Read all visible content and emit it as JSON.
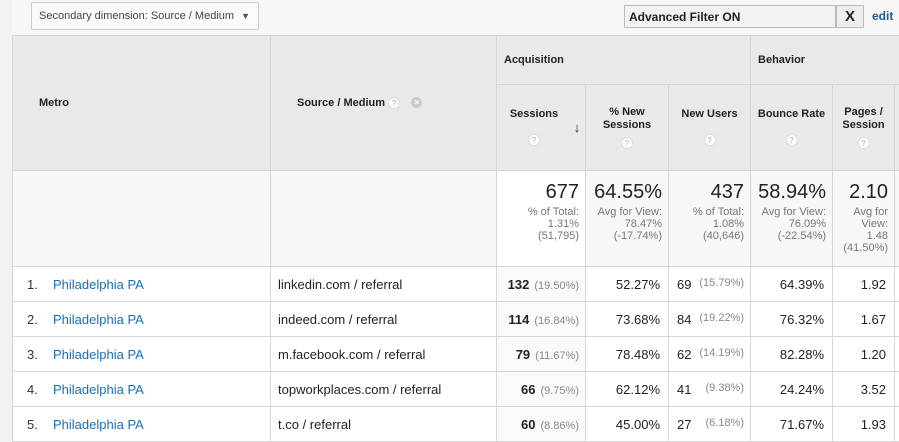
{
  "toolbar": {
    "secondary_dimension": "Secondary dimension: Source / Medium",
    "filter_value": "Advanced Filter ON",
    "clear_label": "X",
    "edit_label": "edit"
  },
  "headers": {
    "metro": "Metro",
    "source_medium": "Source / Medium",
    "groups": [
      "Acquisition",
      "Behavior"
    ],
    "metrics": [
      "Sessions",
      "% New Sessions",
      "New Users",
      "Bounce Rate",
      "Pages / Session"
    ],
    "help": "?"
  },
  "totals": {
    "sessions": {
      "value": "677",
      "l1": "% of Total:",
      "l2": "1.31%",
      "l3": "(51,795)"
    },
    "new_sessions": {
      "value": "64.55%",
      "l1": "Avg for View:",
      "l2": "78.47%",
      "l3": "(-17.74%)"
    },
    "new_users": {
      "value": "437",
      "l1": "% of Total:",
      "l2": "1.08%",
      "l3": "(40,646)"
    },
    "bounce": {
      "value": "58.94%",
      "l1": "Avg for View:",
      "l2": "76.09%",
      "l3": "(-22.54%)"
    },
    "pages": {
      "value": "2.10",
      "l1": "Avg for",
      "l2": "View:",
      "l3": "1.48",
      "l4": "(41.50%)"
    }
  },
  "rows": [
    {
      "idx": "1.",
      "metro": "Philadelphia PA",
      "source": "linkedin.com / referral",
      "sessions": "132",
      "sessions_pct": "(19.50%)",
      "new_sessions": "52.27%",
      "new_users": "69",
      "new_users_pct": "(15.79%)",
      "bounce": "64.39%",
      "pages": "1.92"
    },
    {
      "idx": "2.",
      "metro": "Philadelphia PA",
      "source": "indeed.com / referral",
      "sessions": "114",
      "sessions_pct": "(16.84%)",
      "new_sessions": "73.68%",
      "new_users": "84",
      "new_users_pct": "(19.22%)",
      "bounce": "76.32%",
      "pages": "1.67"
    },
    {
      "idx": "3.",
      "metro": "Philadelphia PA",
      "source": "m.facebook.com / referral",
      "sessions": "79",
      "sessions_pct": "(11.67%)",
      "new_sessions": "78.48%",
      "new_users": "62",
      "new_users_pct": "(14.19%)",
      "bounce": "82.28%",
      "pages": "1.20"
    },
    {
      "idx": "4.",
      "metro": "Philadelphia PA",
      "source": "topworkplaces.com / referral",
      "sessions": "66",
      "sessions_pct": "(9.75%)",
      "new_sessions": "62.12%",
      "new_users": "41",
      "new_users_pct": "(9.38%)",
      "bounce": "24.24%",
      "pages": "3.52"
    },
    {
      "idx": "5.",
      "metro": "Philadelphia PA",
      "source": "t.co / referral",
      "sessions": "60",
      "sessions_pct": "(8.86%)",
      "new_sessions": "45.00%",
      "new_users": "27",
      "new_users_pct": "(6.18%)",
      "bounce": "71.67%",
      "pages": "1.93"
    }
  ]
}
